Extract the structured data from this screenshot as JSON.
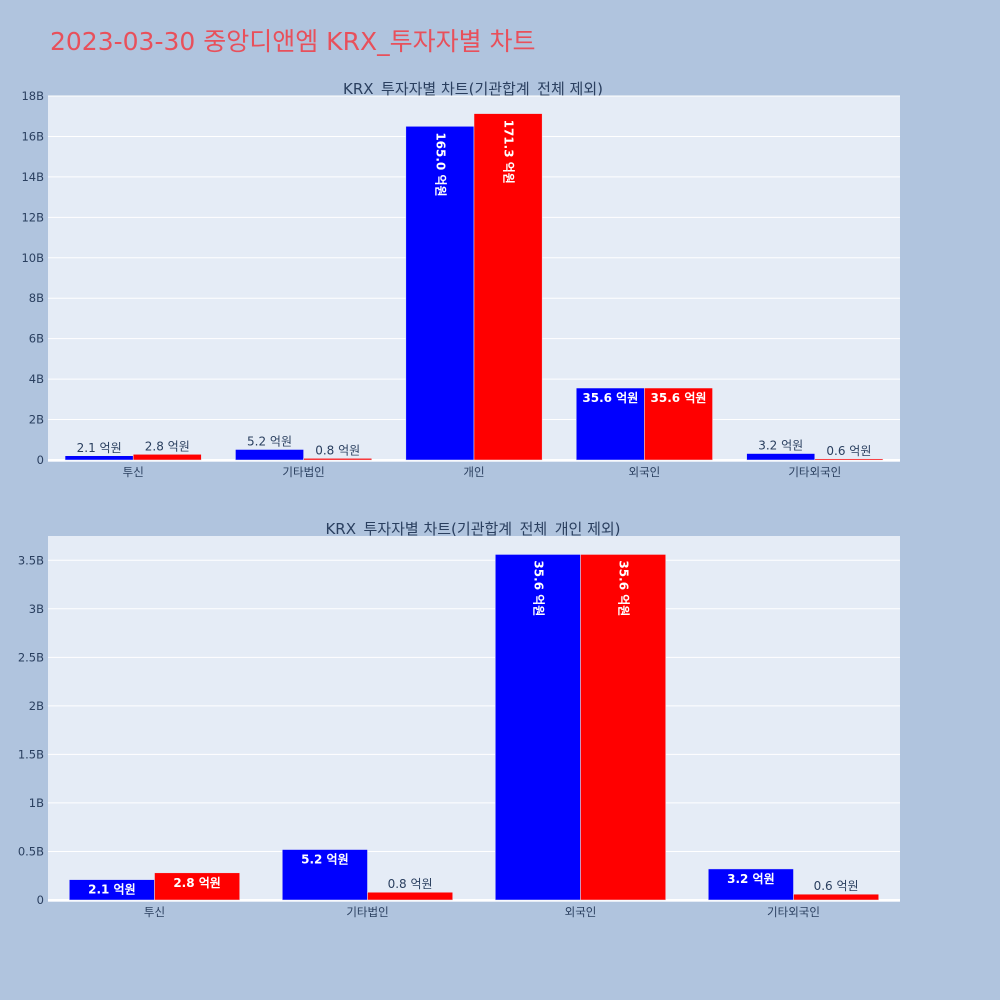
{
  "title": "2023-03-30 중앙디앤엠 KRX_투자자별 차트",
  "colors": {
    "background": "#b0c4de",
    "plot_bg": "#e5ecf6",
    "title": "#e8505b",
    "series_a": "#0000ff",
    "series_b": "#ff0000"
  },
  "chart_data": [
    {
      "type": "bar",
      "title": "KRX_투자자별 차트(기관합계_전체 제외)",
      "categories": [
        "투신",
        "기타법인",
        "개인",
        "외국인",
        "기타외국인"
      ],
      "series": [
        {
          "color": "#0000ff",
          "values": [
            210000000,
            520000000,
            16500000000,
            3560000000,
            320000000
          ],
          "labels": [
            "2.1 억원",
            "5.2 억원",
            "165.0 억원",
            "35.6 억원",
            "3.2 억원"
          ]
        },
        {
          "color": "#ff0000",
          "values": [
            280000000,
            80000000,
            17130000000,
            3560000000,
            60000000
          ],
          "labels": [
            "2.8 억원",
            "0.8 억원",
            "171.3 억원",
            "35.6 억원",
            "0.6 억원"
          ]
        }
      ],
      "ylim": [
        0,
        18000000000
      ],
      "ytick_values": [
        0,
        2000000000,
        4000000000,
        6000000000,
        8000000000,
        10000000000,
        12000000000,
        14000000000,
        16000000000,
        18000000000
      ],
      "ytick_labels": [
        "0",
        "2B",
        "4B",
        "6B",
        "8B",
        "10B",
        "12B",
        "14B",
        "16B",
        "18B"
      ],
      "grid": true
    },
    {
      "type": "bar",
      "title": "KRX_투자자별 차트(기관합계_전체_개인 제외)",
      "categories": [
        "투신",
        "기타법인",
        "외국인",
        "기타외국인"
      ],
      "series": [
        {
          "color": "#0000ff",
          "values": [
            210000000,
            520000000,
            3560000000,
            320000000
          ],
          "labels": [
            "2.1 억원",
            "5.2 억원",
            "35.6 억원",
            "3.2 억원"
          ]
        },
        {
          "color": "#ff0000",
          "values": [
            280000000,
            80000000,
            3560000000,
            60000000
          ],
          "labels": [
            "2.8 억원",
            "0.8 억원",
            "35.6 억원",
            "0.6 억원"
          ]
        }
      ],
      "ylim": [
        0,
        3750000000
      ],
      "ytick_values": [
        0,
        500000000,
        1000000000,
        1500000000,
        2000000000,
        2500000000,
        3000000000,
        3500000000
      ],
      "ytick_labels": [
        "0",
        "0.5B",
        "1B",
        "1.5B",
        "2B",
        "2.5B",
        "3B",
        "3.5B"
      ],
      "grid": true
    }
  ]
}
